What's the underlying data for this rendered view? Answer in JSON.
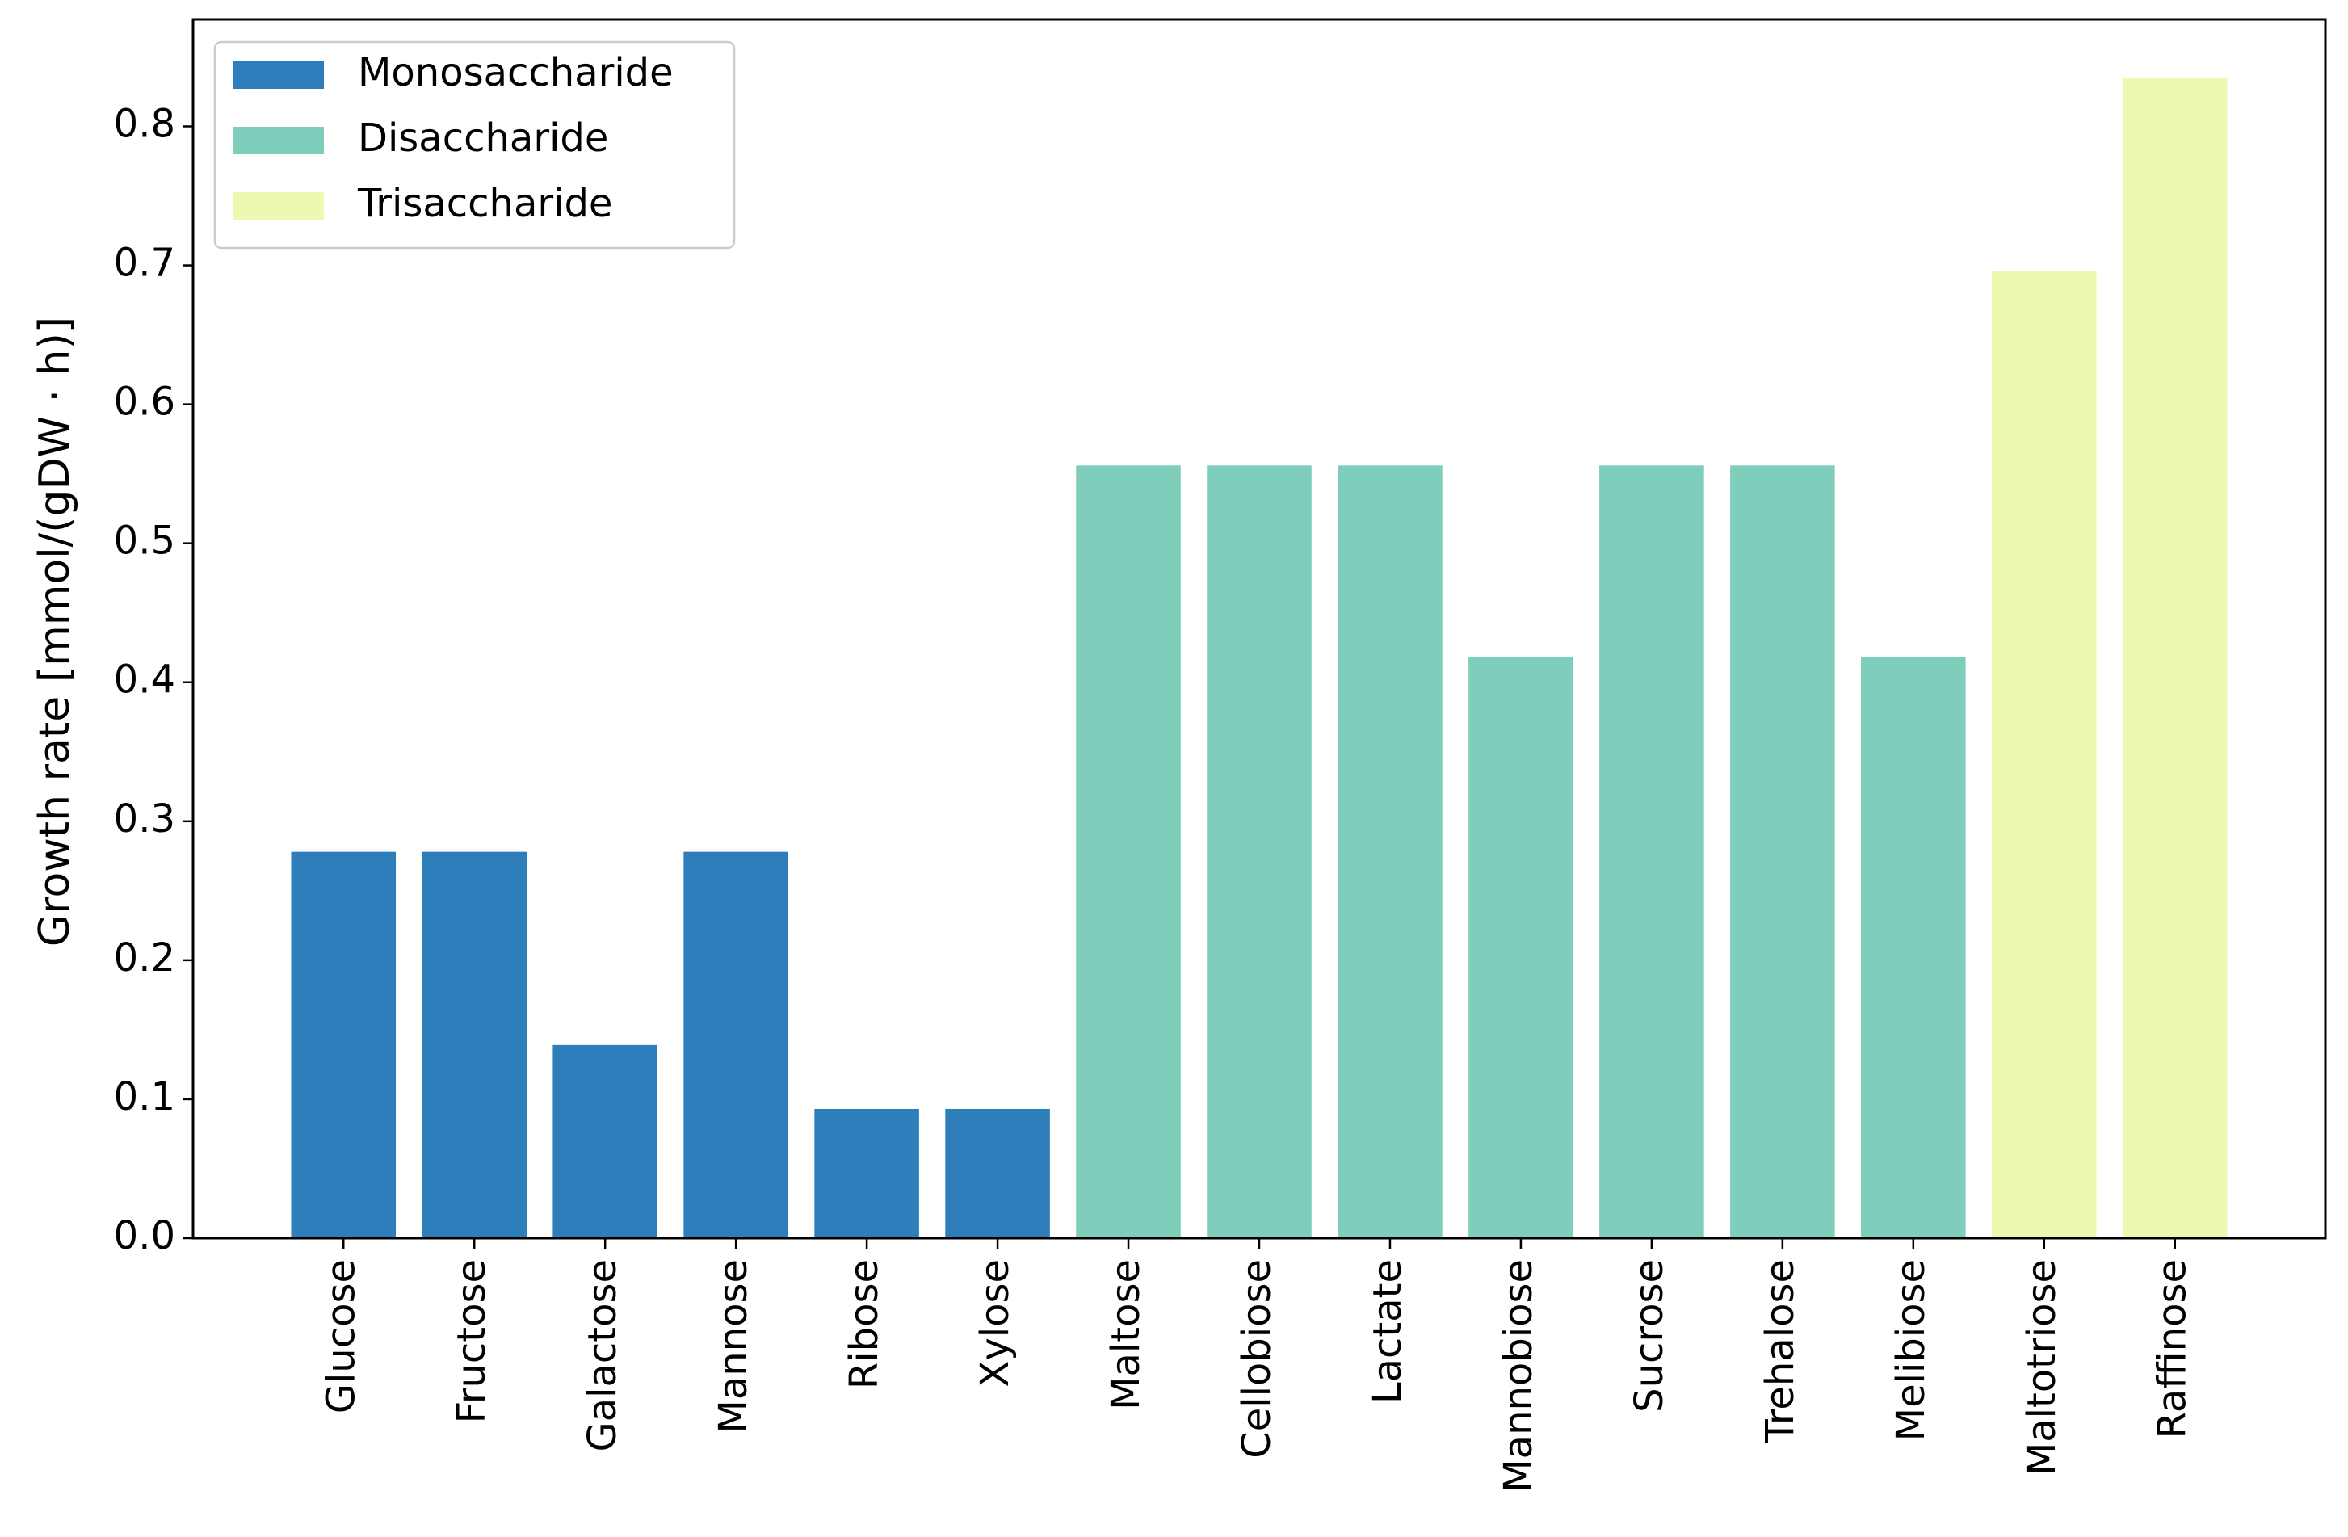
{
  "chart_data": {
    "type": "bar",
    "y_label": "Growth rate [mmol/(gDW · h)]",
    "categories": [
      "Glucose",
      "Fructose",
      "Galactose",
      "Mannose",
      "Ribose",
      "Xylose",
      "Maltose",
      "Cellobiose",
      "Lactate",
      "Mannobiose",
      "Sucrose",
      "Trehalose",
      "Melibiose",
      "Maltotriose",
      "Raffinose"
    ],
    "series": [
      {
        "name": "Monosaccharide",
        "color": "#2e7ebb",
        "values": [
          0.278,
          0.278,
          0.139,
          0.278,
          0.093,
          0.093,
          null,
          null,
          null,
          null,
          null,
          null,
          null,
          null,
          null
        ]
      },
      {
        "name": "Disaccharide",
        "color": "#7fcdbb",
        "values": [
          null,
          null,
          null,
          null,
          null,
          null,
          0.556,
          0.556,
          0.556,
          0.418,
          0.556,
          0.556,
          0.418,
          null,
          null
        ]
      },
      {
        "name": "Trisaccharide",
        "color": "#edf8b1",
        "values": [
          null,
          null,
          null,
          null,
          null,
          null,
          null,
          null,
          null,
          null,
          null,
          null,
          null,
          0.696,
          0.835
        ]
      }
    ],
    "ylim": [
      0,
      0.877
    ],
    "yticks": [
      {
        "value": 0,
        "label": "0.0"
      },
      0.1,
      0.2,
      0.3,
      0.4,
      0.5,
      0.6,
      0.7,
      0.8
    ],
    "legend": "upper left"
  }
}
